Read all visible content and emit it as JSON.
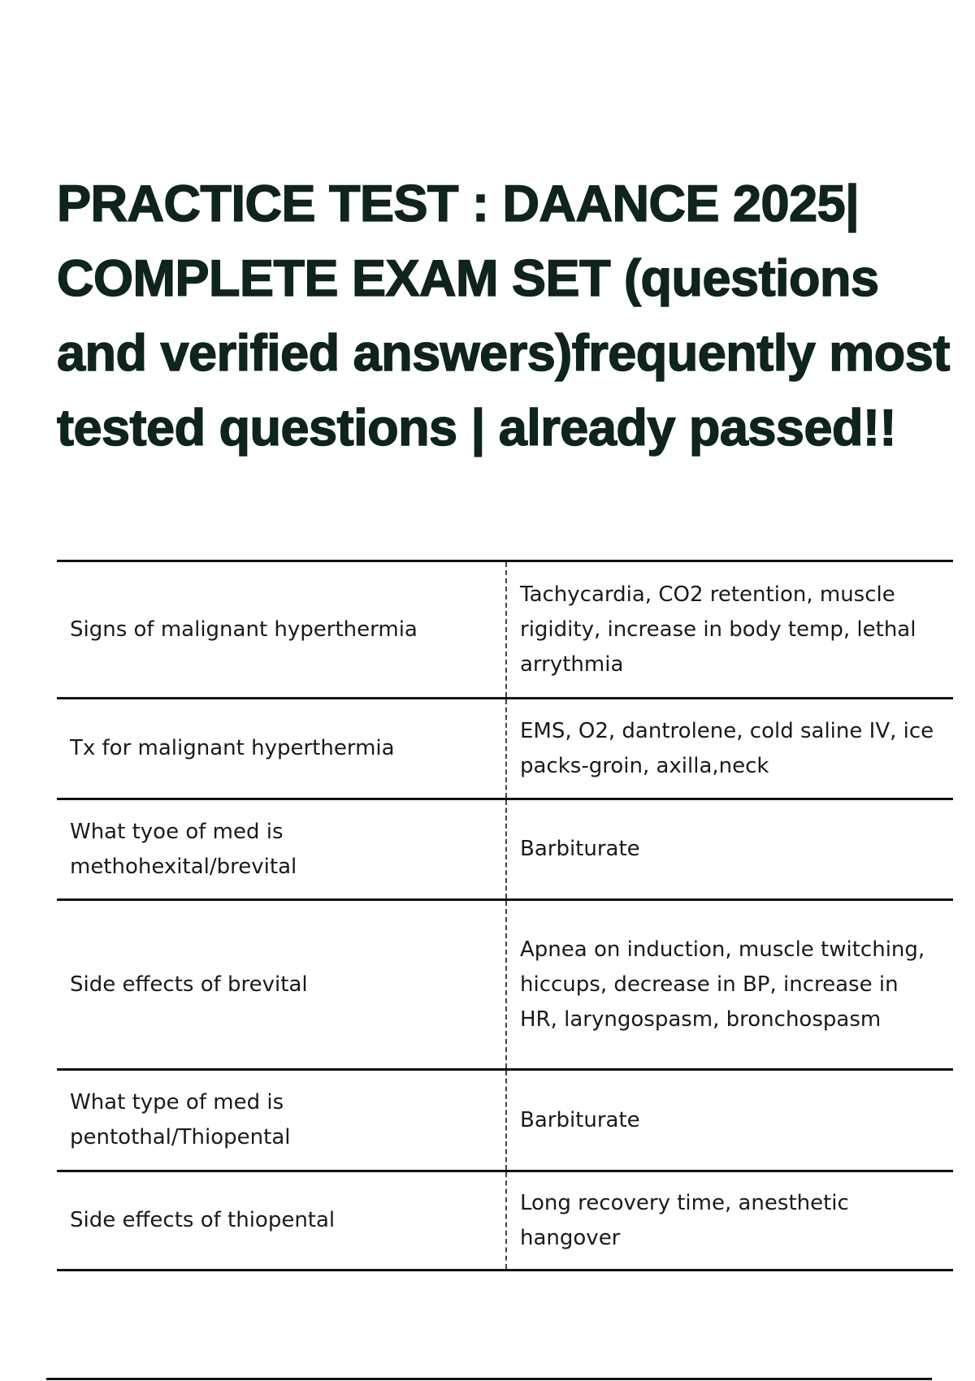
{
  "document": {
    "title": "PRACTICE TEST : DAANCE 2025| COMPLETE EXAM SET (questions and verified answers)frequently most tested questions | already passed!!",
    "rows": [
      {
        "question": "Signs of malignant hyperthermia",
        "answer": "Tachycardia, CO2 retention, muscle rigidity, increase in body temp, lethal arrythmia"
      },
      {
        "question": "Tx for malignant hyperthermia",
        "answer": "EMS, O2, dantrolene, cold saline IV, ice packs-groin, axilla,neck"
      },
      {
        "question": "What tyoe of med is methohexital/brevital",
        "answer": "Barbiturate"
      },
      {
        "question": "Side effects of brevital",
        "answer": "Apnea on induction, muscle twitching, hiccups, decrease in BP, increase in HR, laryngospasm, bronchospasm"
      },
      {
        "question": "What type of med is pentothal/Thiopental",
        "answer": "Barbiturate"
      },
      {
        "question": "Side effects of thiopental",
        "answer": "Long recovery time, anesthetic hangover"
      }
    ]
  }
}
